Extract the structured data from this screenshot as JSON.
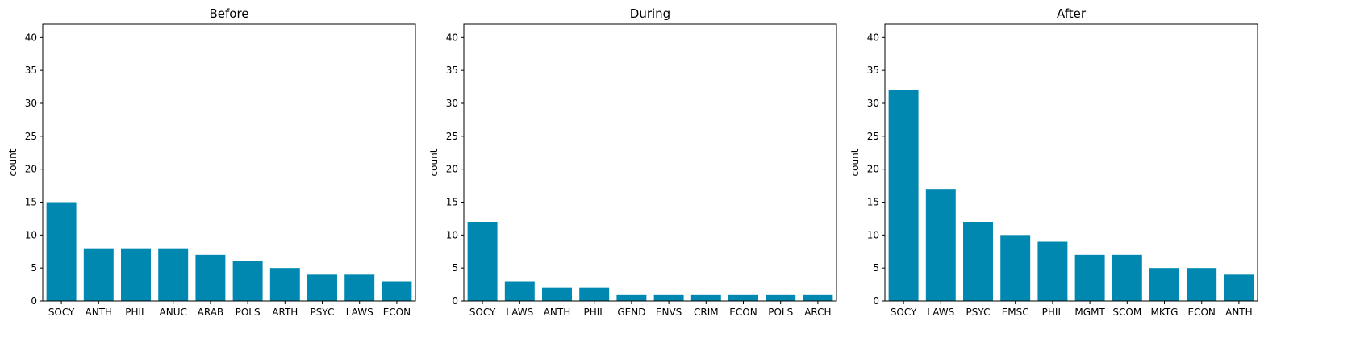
{
  "chart_data": [
    {
      "type": "bar",
      "title": "Before",
      "xlabel": "",
      "ylabel": "count",
      "ylim": [
        0,
        42
      ],
      "yticks": [
        0,
        5,
        10,
        15,
        20,
        25,
        30,
        35,
        40
      ],
      "categories": [
        "SOCY",
        "ANTH",
        "PHIL",
        "ANUC",
        "ARAB",
        "POLS",
        "ARTH",
        "PSYC",
        "LAWS",
        "ECON"
      ],
      "values": [
        15,
        8,
        8,
        8,
        7,
        6,
        5,
        4,
        4,
        3
      ],
      "color": "#0088b0",
      "grid": false
    },
    {
      "type": "bar",
      "title": "During",
      "xlabel": "",
      "ylabel": "count",
      "ylim": [
        0,
        42
      ],
      "yticks": [
        0,
        5,
        10,
        15,
        20,
        25,
        30,
        35,
        40
      ],
      "categories": [
        "SOCY",
        "LAWS",
        "ANTH",
        "PHIL",
        "GEND",
        "ENVS",
        "CRIM",
        "ECON",
        "POLS",
        "ARCH"
      ],
      "values": [
        12,
        3,
        2,
        2,
        1,
        1,
        1,
        1,
        1,
        1
      ],
      "color": "#0088b0",
      "grid": false
    },
    {
      "type": "bar",
      "title": "After",
      "xlabel": "",
      "ylabel": "count",
      "ylim": [
        0,
        42
      ],
      "yticks": [
        0,
        5,
        10,
        15,
        20,
        25,
        30,
        35,
        40
      ],
      "categories": [
        "SOCY",
        "LAWS",
        "PSYC",
        "EMSC",
        "PHIL",
        "MGMT",
        "SCOM",
        "MKTG",
        "ECON",
        "ANTH"
      ],
      "values": [
        32,
        17,
        12,
        10,
        9,
        7,
        7,
        5,
        5,
        4
      ],
      "color": "#0088b0",
      "grid": false
    }
  ]
}
